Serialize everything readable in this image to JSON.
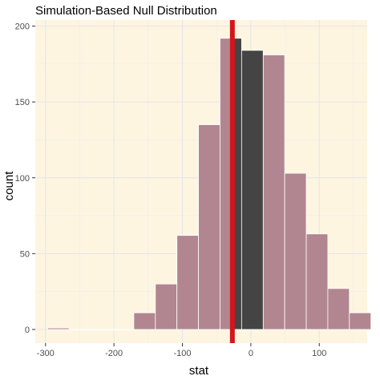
{
  "chart_data": {
    "type": "bar",
    "title": "Simulation-Based Null Distribution",
    "xlabel": "stat",
    "ylabel": "count",
    "xlim": [
      -315,
      170
    ],
    "ylim": [
      -9,
      204
    ],
    "x_ticks": [
      -300,
      -200,
      -100,
      0,
      100
    ],
    "y_ticks": [
      0,
      50,
      100,
      150,
      200
    ],
    "grid": true,
    "bin_width": 31.5,
    "bins": [
      {
        "left": -297,
        "right": -265.5,
        "count": 1,
        "shaded": false
      },
      {
        "left": -265.5,
        "right": -234,
        "count": 0,
        "shaded": false
      },
      {
        "left": -234,
        "right": -202.5,
        "count": 0,
        "shaded": false
      },
      {
        "left": -202.5,
        "right": -171,
        "count": 0,
        "shaded": false
      },
      {
        "left": -171,
        "right": -139.5,
        "count": 11,
        "shaded": false
      },
      {
        "left": -139.5,
        "right": -108,
        "count": 30,
        "shaded": false
      },
      {
        "left": -108,
        "right": -76.5,
        "count": 62,
        "shaded": false
      },
      {
        "left": -76.5,
        "right": -45,
        "count": 135,
        "shaded": false
      },
      {
        "left": -45,
        "right": -13.5,
        "count": 192,
        "shaded": false
      },
      {
        "left": -13.5,
        "right": 18,
        "count": 184,
        "shaded": true
      },
      {
        "left": 18,
        "right": 49.5,
        "count": 181,
        "shaded": false
      },
      {
        "left": 49.5,
        "right": 81,
        "count": 103,
        "shaded": false
      },
      {
        "left": 81,
        "right": 112.5,
        "count": 63,
        "shaded": false
      },
      {
        "left": 112.5,
        "right": 144,
        "count": 27,
        "shaded": false
      },
      {
        "left": 144,
        "right": 175.5,
        "count": 11,
        "shaded": false
      }
    ],
    "observed_stat": -27,
    "shade_interval": [
      -27,
      18
    ],
    "colors": {
      "panel_background": "#fdf5e0",
      "bar_fill": "#b28690",
      "bar_edge": "#ffffff",
      "shade_fill": "#444444",
      "obs_line": "#d4161c",
      "grid_major": "#e5e5ea",
      "grid_minor": "#eeeef0",
      "axis_text": "#4d4d4d",
      "title_text": "#000000"
    }
  }
}
